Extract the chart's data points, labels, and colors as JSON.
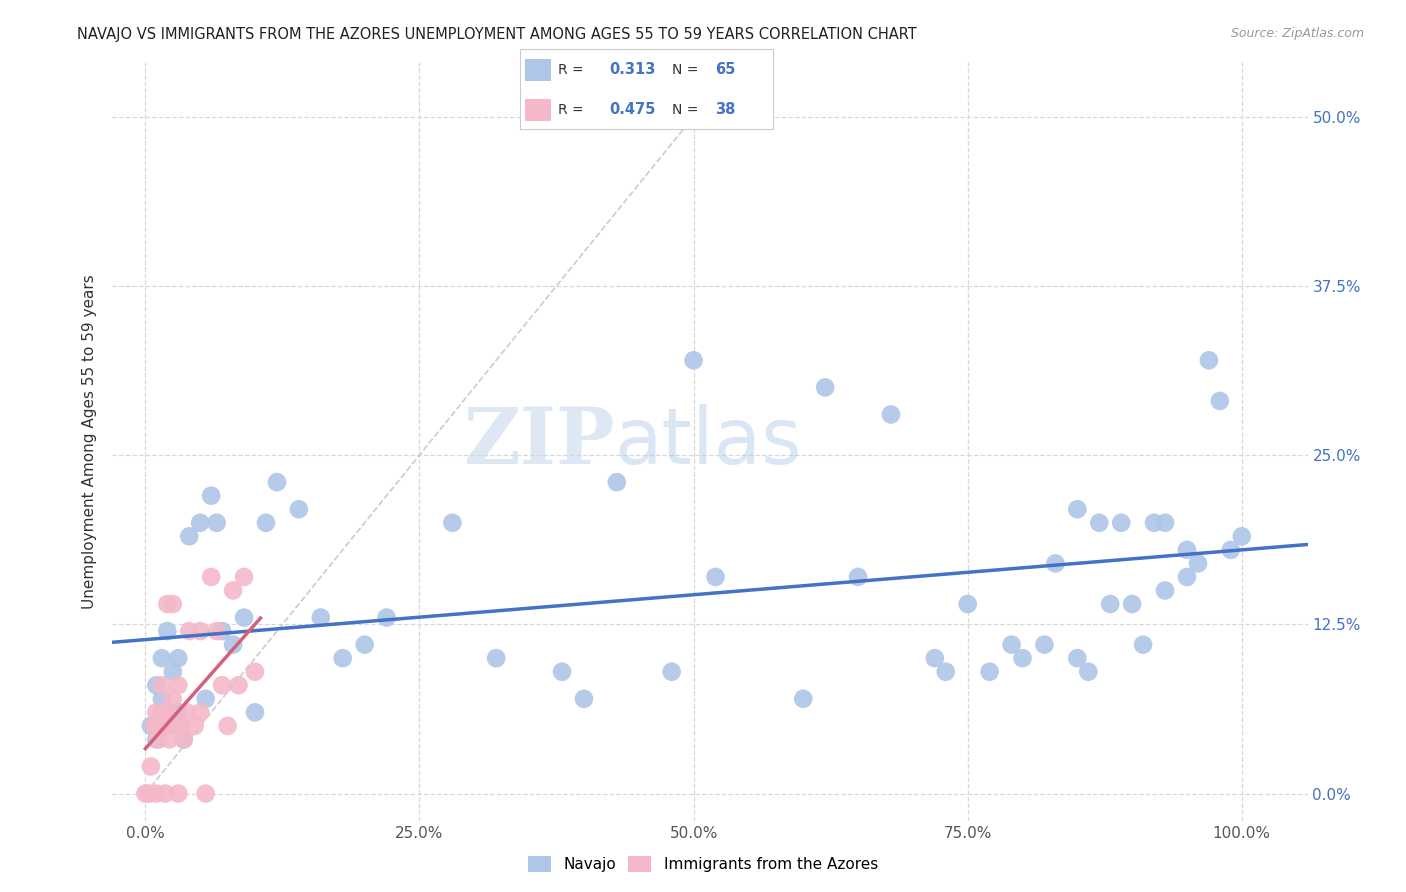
{
  "title": "NAVAJO VS IMMIGRANTS FROM THE AZORES UNEMPLOYMENT AMONG AGES 55 TO 59 YEARS CORRELATION CHART",
  "source": "Source: ZipAtlas.com",
  "ylabel": "Unemployment Among Ages 55 to 59 years",
  "watermark_zip": "ZIP",
  "watermark_atlas": "atlas",
  "legend_label1": "Navajo",
  "legend_label2": "Immigrants from the Azores",
  "R1": "0.313",
  "N1": "65",
  "R2": "0.475",
  "N2": "38",
  "color1": "#aec6e8",
  "color2": "#f4b8c8",
  "trendline1_color": "#4472c4",
  "trendline2_color": "#d4607a",
  "diagonal_color": "#cccccc",
  "xlabel_tick_vals": [
    0.0,
    0.25,
    0.5,
    0.75,
    1.0
  ],
  "xlabel_ticks": [
    "0.0%",
    "25.0%",
    "50.0%",
    "75.0%",
    "100.0%"
  ],
  "ylabel_tick_vals": [
    0.0,
    0.125,
    0.25,
    0.375,
    0.5
  ],
  "ylabel_ticks": [
    "0.0%",
    "12.5%",
    "25.0%",
    "37.5%",
    "50.0%"
  ],
  "xlim": [
    -0.03,
    1.06
  ],
  "ylim": [
    -0.02,
    0.54
  ],
  "navajo_x": [
    0.005,
    0.01,
    0.01,
    0.015,
    0.015,
    0.02,
    0.02,
    0.025,
    0.03,
    0.03,
    0.035,
    0.04,
    0.05,
    0.055,
    0.06,
    0.065,
    0.07,
    0.08,
    0.09,
    0.1,
    0.11,
    0.12,
    0.14,
    0.16,
    0.18,
    0.2,
    0.22,
    0.28,
    0.32,
    0.38,
    0.4,
    0.43,
    0.48,
    0.5,
    0.52,
    0.6,
    0.62,
    0.65,
    0.68,
    0.72,
    0.73,
    0.75,
    0.77,
    0.79,
    0.8,
    0.82,
    0.83,
    0.85,
    0.85,
    0.86,
    0.87,
    0.88,
    0.89,
    0.9,
    0.91,
    0.92,
    0.93,
    0.93,
    0.95,
    0.95,
    0.96,
    0.97,
    0.98,
    0.99,
    1.0
  ],
  "navajo_y": [
    0.05,
    0.08,
    0.04,
    0.1,
    0.07,
    0.12,
    0.05,
    0.09,
    0.06,
    0.1,
    0.04,
    0.19,
    0.2,
    0.07,
    0.22,
    0.2,
    0.12,
    0.11,
    0.13,
    0.06,
    0.2,
    0.23,
    0.21,
    0.13,
    0.1,
    0.11,
    0.13,
    0.2,
    0.1,
    0.09,
    0.07,
    0.23,
    0.09,
    0.32,
    0.16,
    0.07,
    0.3,
    0.16,
    0.28,
    0.1,
    0.09,
    0.14,
    0.09,
    0.11,
    0.1,
    0.11,
    0.17,
    0.1,
    0.21,
    0.09,
    0.2,
    0.14,
    0.2,
    0.14,
    0.11,
    0.2,
    0.15,
    0.2,
    0.16,
    0.18,
    0.17,
    0.32,
    0.29,
    0.18,
    0.19
  ],
  "azores_x": [
    0.0,
    0.003,
    0.005,
    0.008,
    0.01,
    0.01,
    0.01,
    0.012,
    0.012,
    0.015,
    0.015,
    0.016,
    0.018,
    0.02,
    0.02,
    0.02,
    0.022,
    0.025,
    0.025,
    0.03,
    0.03,
    0.03,
    0.033,
    0.035,
    0.038,
    0.04,
    0.045,
    0.05,
    0.05,
    0.055,
    0.06,
    0.065,
    0.07,
    0.075,
    0.08,
    0.085,
    0.09,
    0.1
  ],
  "azores_y": [
    0.0,
    0.0,
    0.02,
    0.05,
    0.0,
    0.06,
    0.05,
    0.04,
    0.05,
    0.06,
    0.08,
    0.05,
    0.0,
    0.06,
    0.14,
    0.05,
    0.04,
    0.07,
    0.14,
    0.0,
    0.05,
    0.08,
    0.05,
    0.04,
    0.06,
    0.12,
    0.05,
    0.12,
    0.06,
    0.0,
    0.16,
    0.12,
    0.08,
    0.05,
    0.15,
    0.08,
    0.16,
    0.09
  ],
  "bg_color": "#ffffff",
  "grid_color": "#d8d8d8",
  "title_color": "#222222",
  "source_color": "#999999",
  "ylabel_color": "#333333",
  "right_tick_color": "#4472c4",
  "bottom_tick_color": "#555555"
}
